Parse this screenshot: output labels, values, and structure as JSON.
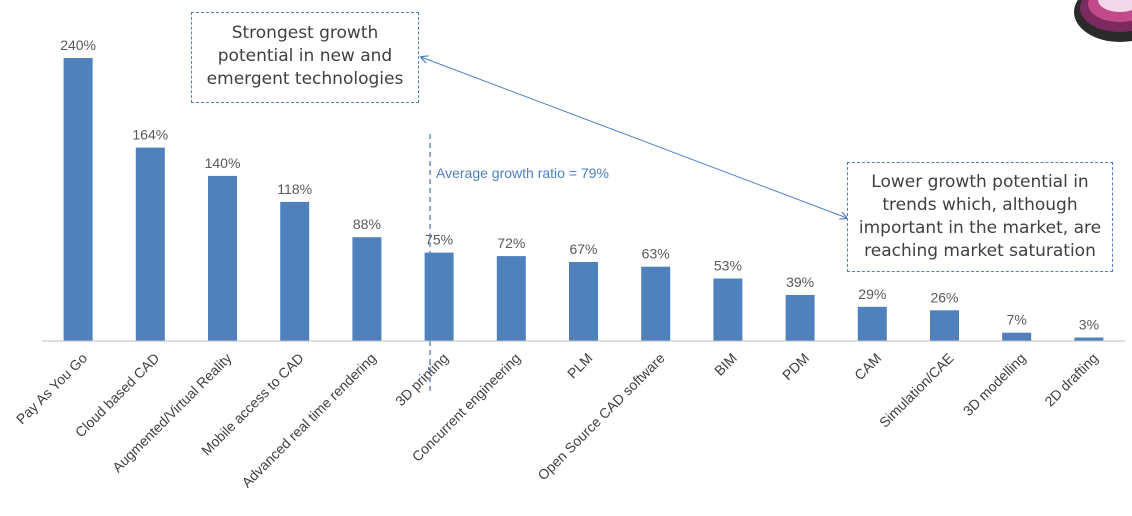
{
  "chart_data": {
    "type": "bar",
    "categories": [
      "Pay As You Go",
      "Cloud based CAD",
      "Augmented/Virtual Reality",
      "Mobile access to CAD",
      "Advanced real time rendering",
      "3D printing",
      "Concurrent engineering",
      "PLM",
      "Open Source CAD software",
      "BIM",
      "PDM",
      "CAM",
      "Simulation/CAE",
      "3D modelling",
      "2D drafting"
    ],
    "values": [
      240,
      164,
      140,
      118,
      88,
      75,
      72,
      67,
      63,
      53,
      39,
      29,
      26,
      7,
      3
    ],
    "value_labels": [
      "240%",
      "164%",
      "140%",
      "118%",
      "88%",
      "75%",
      "72%",
      "67%",
      "63%",
      "53%",
      "39%",
      "29%",
      "26%",
      "7%",
      "3%"
    ],
    "unit": "%",
    "ylim": [
      0,
      240
    ],
    "grid": false,
    "legend": "none",
    "bar_color": "#4f81bd",
    "average_line": {
      "label": "Average growth ratio = 79%",
      "between_categories": [
        "Advanced real time rendering",
        "3D printing"
      ],
      "color": "#4f7fbf"
    },
    "annotations": [
      {
        "id": "high",
        "text": "Strongest  growth\npotential in new and\nemergent technologies"
      },
      {
        "id": "low",
        "text": "Lower growth potential in\ntrends which, although\nimportant in the market, are\nreaching market saturation"
      }
    ]
  }
}
